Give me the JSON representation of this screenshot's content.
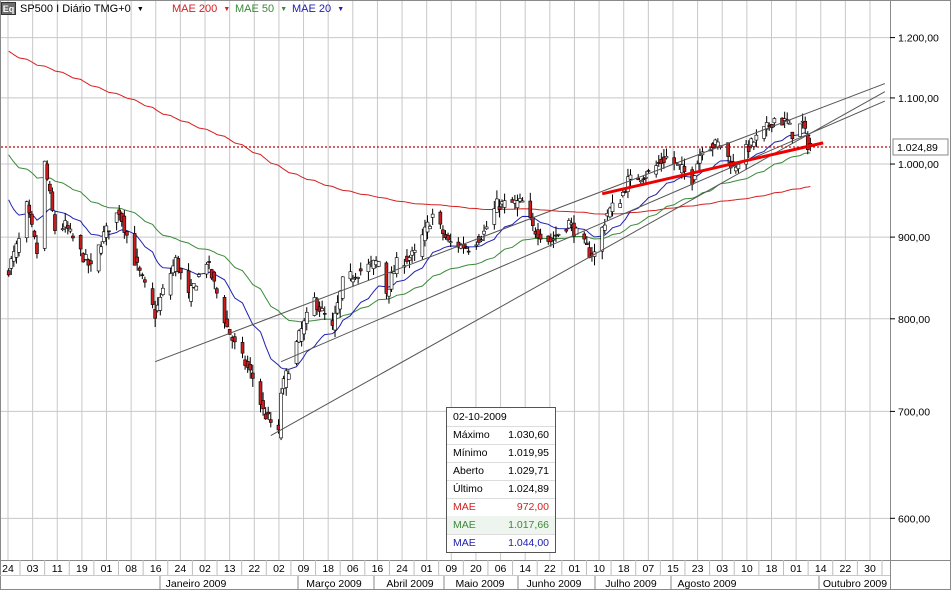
{
  "toolbar": {
    "icon_text": "Eq",
    "symbol": "SP500 I Diário TMG+0",
    "indicators": [
      {
        "label": "MAE 200",
        "color": "#d62020"
      },
      {
        "label": "MAE 50",
        "color": "#3a8a3a"
      },
      {
        "label": "MAE 20",
        "color": "#2020b0"
      }
    ]
  },
  "tooltip": {
    "date": "02-10-2009",
    "rows": [
      {
        "label": "Máximo",
        "value": "1.030,60",
        "color": "#000000"
      },
      {
        "label": "Mínimo",
        "value": "1.019,95",
        "color": "#000000"
      },
      {
        "label": "Aberto",
        "value": "1.029,71",
        "color": "#000000"
      },
      {
        "label": "Último",
        "value": "1.024,89",
        "color": "#000000"
      },
      {
        "label": "MAE",
        "value": "972,00",
        "color": "#d62020"
      },
      {
        "label": "MAE",
        "value": "1.017,66",
        "color": "#3a8a3a"
      },
      {
        "label": "MAE",
        "value": "1.044,00",
        "color": "#2020b0"
      }
    ]
  },
  "chart_data": {
    "type": "candlestick",
    "y_scale": "log",
    "ylim": [
      565,
      1265
    ],
    "y_ticks": [
      {
        "value": 600,
        "label": "600,00"
      },
      {
        "value": 700,
        "label": "700,00"
      },
      {
        "value": 800,
        "label": "800,00"
      },
      {
        "value": 900,
        "label": "900,00"
      },
      {
        "value": 1000,
        "label": "1.000,00"
      },
      {
        "value": 1100,
        "label": "1.100,00"
      },
      {
        "value": 1200,
        "label": "1.200,00"
      }
    ],
    "last_price": {
      "value": 1024.89,
      "label": "1.024,89",
      "color": "#c00000"
    },
    "x_day_ticks": [
      "24",
      "03",
      "11",
      "19",
      "01",
      "08",
      "16",
      "24",
      "02",
      "13",
      "22",
      "02",
      "09",
      "18",
      "06",
      "16",
      "24",
      "01",
      "09",
      "20",
      "06",
      "14",
      "22",
      "01",
      "10",
      "18",
      "07",
      "15",
      "23",
      "03",
      "10",
      "18",
      "01",
      "14",
      "22",
      "30"
    ],
    "x_month_labels": [
      "Janeiro 2009",
      "Março 2009",
      "Abril 2009",
      "Maio 2009",
      "Junho 2009",
      "Julho 2009",
      "Agosto 2009",
      "Outubro 2009"
    ],
    "price_anchors": [
      [
        "2008-11-24",
        860
      ],
      [
        "2008-11-28",
        895
      ],
      [
        "2008-12-01",
        940
      ],
      [
        "2008-12-05",
        880
      ],
      [
        "2008-12-08",
        1000
      ],
      [
        "2008-12-12",
        910
      ],
      [
        "2008-12-16",
        915
      ],
      [
        "2008-12-22",
        880
      ],
      [
        "2008-12-26",
        860
      ],
      [
        "2008-12-31",
        903
      ],
      [
        "2009-01-06",
        935
      ],
      [
        "2009-01-12",
        870
      ],
      [
        "2009-01-20",
        805
      ],
      [
        "2009-01-23",
        832
      ],
      [
        "2009-01-28",
        870
      ],
      [
        "2009-02-02",
        826
      ],
      [
        "2009-02-09",
        870
      ],
      [
        "2009-02-17",
        790
      ],
      [
        "2009-02-20",
        770
      ],
      [
        "2009-02-27",
        735
      ],
      [
        "2009-03-03",
        700
      ],
      [
        "2009-03-09",
        677
      ],
      [
        "2009-03-10",
        720
      ],
      [
        "2009-03-17",
        780
      ],
      [
        "2009-03-23",
        822
      ],
      [
        "2009-03-30",
        788
      ],
      [
        "2009-04-03",
        843
      ],
      [
        "2009-04-09",
        856
      ],
      [
        "2009-04-17",
        869
      ],
      [
        "2009-04-20",
        832
      ],
      [
        "2009-04-24",
        866
      ],
      [
        "2009-05-01",
        878
      ],
      [
        "2009-05-08",
        929
      ],
      [
        "2009-05-14",
        893
      ],
      [
        "2009-05-22",
        887
      ],
      [
        "2009-05-28",
        906
      ],
      [
        "2009-06-02",
        943
      ],
      [
        "2009-06-12",
        946
      ],
      [
        "2009-06-16",
        911
      ],
      [
        "2009-06-23",
        895
      ],
      [
        "2009-06-30",
        919
      ],
      [
        "2009-07-08",
        880
      ],
      [
        "2009-07-10",
        879
      ],
      [
        "2009-07-15",
        932
      ],
      [
        "2009-07-20",
        951
      ],
      [
        "2009-07-23",
        976
      ],
      [
        "2009-07-31",
        987
      ],
      [
        "2009-08-07",
        1010
      ],
      [
        "2009-08-17",
        979
      ],
      [
        "2009-08-21",
        1026
      ],
      [
        "2009-08-28",
        1029
      ],
      [
        "2009-09-02",
        995
      ],
      [
        "2009-09-08",
        1025
      ],
      [
        "2009-09-15",
        1053
      ],
      [
        "2009-09-18",
        1068
      ],
      [
        "2009-09-23",
        1061
      ],
      [
        "2009-09-25",
        1045
      ],
      [
        "2009-09-29",
        1060
      ],
      [
        "2009-10-01",
        1029
      ],
      [
        "2009-10-02",
        1025
      ]
    ],
    "trendlines": [
      {
        "from": [
          "2009-01-20",
          752
        ],
        "to": [
          "2009-10-31",
          1123
        ],
        "color": "#555555"
      },
      {
        "from": [
          "2009-03-06",
          676
        ],
        "to": [
          "2009-10-31",
          1110
        ],
        "color": "#555555"
      },
      {
        "from": [
          "2009-03-10",
          752
        ],
        "to": [
          "2009-10-31",
          1095
        ],
        "color": "#555555"
      },
      {
        "from": [
          "2009-07-13",
          958
        ],
        "to": [
          "2009-10-07",
          1031
        ],
        "color": "#ee0000",
        "width": 3
      }
    ],
    "colors": {
      "up": "#ffffff",
      "down": "#cc1b1b",
      "wick": "#000000",
      "mae200": "#d62020",
      "mae50": "#3a8a3a",
      "mae20": "#2020b0",
      "grid": "#c8c8c8"
    }
  }
}
